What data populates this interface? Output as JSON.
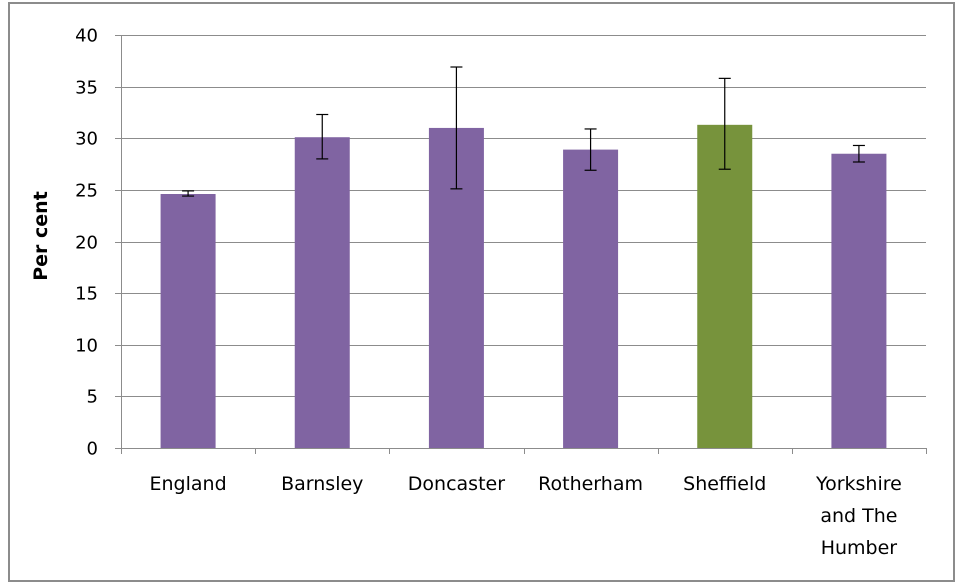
{
  "chart_data": {
    "type": "bar",
    "categories": [
      "England",
      "Barnsley",
      "Doncaster",
      "Rotherham",
      "Sheffield",
      "Yorkshire and The Humber"
    ],
    "category_label_lines": [
      [
        "England"
      ],
      [
        "Barnsley"
      ],
      [
        "Doncaster"
      ],
      [
        "Rotherham"
      ],
      [
        "Sheffield"
      ],
      [
        "Yorkshire",
        "and The",
        "Humber"
      ]
    ],
    "values": [
      24.6,
      30.1,
      31.0,
      28.9,
      31.3,
      28.5
    ],
    "error_low": [
      24.4,
      28.0,
      25.1,
      26.9,
      27.0,
      27.7
    ],
    "error_high": [
      24.9,
      32.3,
      36.9,
      30.9,
      35.8,
      29.3
    ],
    "bar_colors": [
      "#8064a2",
      "#8064a2",
      "#8064a2",
      "#8064a2",
      "#77933c",
      "#8064a2"
    ],
    "ylabel": "Per cent",
    "xlabel": "",
    "ylim": [
      0,
      40
    ],
    "yticks": [
      0,
      5,
      10,
      15,
      20,
      25,
      30,
      35,
      40
    ],
    "grid": true,
    "legend": "none"
  }
}
